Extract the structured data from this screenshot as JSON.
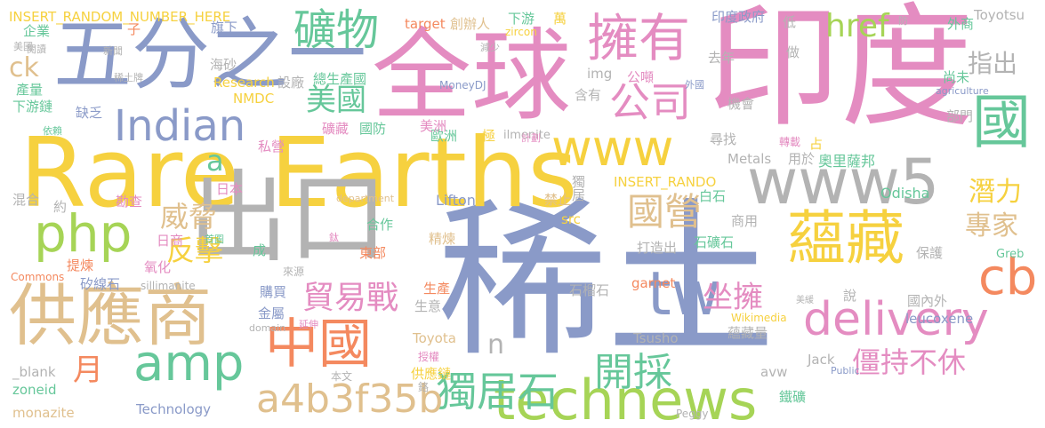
{
  "cloud": {
    "palette": {
      "gold": "#f6d13f",
      "slate": "#8a9ac8",
      "pink": "#e48cc1",
      "green": "#66c79a",
      "gray": "#b3b3b3",
      "sand": "#e0c08e",
      "orange": "#f4895f",
      "lime": "#a6d456"
    },
    "words": [
      {
        "text": "稀土",
        "color": "slate"
      },
      {
        "text": "印度",
        "color": "pink"
      },
      {
        "text": "Rare Earths",
        "color": "gold"
      },
      {
        "text": "全球",
        "color": "pink"
      },
      {
        "text": "出口",
        "color": "gray"
      },
      {
        "text": "五分之一",
        "color": "slate"
      },
      {
        "text": "供應商",
        "color": "sand"
      },
      {
        "text": "technews",
        "color": "lime"
      },
      {
        "text": "www5",
        "color": "gray"
      },
      {
        "text": "www",
        "color": "gold"
      },
      {
        "text": "擁有",
        "color": "pink"
      },
      {
        "text": "蘊藏",
        "color": "gold"
      },
      {
        "text": "php",
        "color": "lime"
      },
      {
        "text": "中國",
        "color": "orange"
      },
      {
        "text": "delivery",
        "color": "pink"
      },
      {
        "text": "cb",
        "color": "orange"
      },
      {
        "text": "tw",
        "color": "slate"
      },
      {
        "text": "amp",
        "color": "green"
      },
      {
        "text": "國",
        "color": "green"
      },
      {
        "text": "Indian",
        "color": "slate"
      },
      {
        "text": "礦物",
        "color": "green"
      },
      {
        "text": "公司",
        "color": "pink"
      },
      {
        "text": "國營",
        "color": "sand"
      },
      {
        "text": "獨居石",
        "color": "green"
      },
      {
        "text": "開採",
        "color": "green"
      },
      {
        "text": "a4b3f35b",
        "color": "sand"
      },
      {
        "text": "貿易戰",
        "color": "pink"
      },
      {
        "text": "美國",
        "color": "green"
      },
      {
        "text": "坐擁",
        "color": "pink"
      },
      {
        "text": "僵持不休",
        "color": "pink"
      },
      {
        "text": "威脅",
        "color": "sand"
      },
      {
        "text": "反擊",
        "color": "gold"
      },
      {
        "text": "月",
        "color": "orange"
      },
      {
        "text": "href",
        "color": "lime"
      },
      {
        "text": "指出",
        "color": "gray"
      },
      {
        "text": "潛力",
        "color": "gold"
      },
      {
        "text": "專家",
        "color": "sand"
      },
      {
        "text": "ck",
        "color": "sand"
      },
      {
        "text": "a",
        "color": "green"
      },
      {
        "text": "n",
        "color": "gray"
      },
      {
        "text": "INSERT_RANDOM_NUMBER_HERE",
        "color": "gold"
      },
      {
        "text": "Toyotsu",
        "color": "gray"
      },
      {
        "text": "INSERT_RANDO",
        "color": "gold"
      },
      {
        "text": "奧里薩邦",
        "color": "green"
      },
      {
        "text": "Odisha",
        "color": "green"
      },
      {
        "text": "Lifton",
        "color": "slate"
      },
      {
        "text": "Metals",
        "color": "gray"
      },
      {
        "text": "獨居",
        "color": "gray"
      },
      {
        "text": "Research",
        "color": "gold"
      },
      {
        "text": "NMDC",
        "color": "gold"
      },
      {
        "text": "MoneyDJ",
        "color": "slate"
      },
      {
        "text": "印度政府",
        "color": "slate"
      },
      {
        "text": "創辦人",
        "color": "sand"
      },
      {
        "text": "target",
        "color": "orange"
      },
      {
        "text": "下游",
        "color": "green"
      },
      {
        "text": "萬",
        "color": "gold"
      },
      {
        "text": "外商",
        "color": "green"
      },
      {
        "text": "低",
        "color": "gray"
      },
      {
        "text": "企業",
        "color": "green"
      },
      {
        "text": "子",
        "color": "orange"
      },
      {
        "text": "旗下",
        "color": "slate"
      },
      {
        "text": "海砂",
        "color": "gray"
      },
      {
        "text": "產量",
        "color": "green"
      },
      {
        "text": "下游鏈",
        "color": "green"
      },
      {
        "text": "缺乏",
        "color": "slate"
      },
      {
        "text": "設廠",
        "color": "gray"
      },
      {
        "text": "總生產國",
        "color": "green"
      },
      {
        "text": "礦藏",
        "color": "pink"
      },
      {
        "text": "國防",
        "color": "green"
      },
      {
        "text": "私營",
        "color": "pink"
      },
      {
        "text": "歐洲",
        "color": "green"
      },
      {
        "text": "美洲",
        "color": "pink"
      },
      {
        "text": "極",
        "color": "gold"
      },
      {
        "text": "公噸",
        "color": "pink"
      },
      {
        "text": "含有",
        "color": "gray"
      },
      {
        "text": "img",
        "color": "gray"
      },
      {
        "text": "去年",
        "color": "gray"
      },
      {
        "text": "做",
        "color": "gray"
      },
      {
        "text": "尚未",
        "color": "green"
      },
      {
        "text": "agriculture",
        "color": "slate"
      },
      {
        "text": "部門",
        "color": "gray"
      },
      {
        "text": "機會",
        "color": "gray"
      },
      {
        "text": "尋找",
        "color": "gray"
      },
      {
        "text": "轉載",
        "color": "pink"
      },
      {
        "text": "用於",
        "color": "gray"
      },
      {
        "text": "占",
        "color": "gold"
      },
      {
        "text": "禁止",
        "color": "sand"
      },
      {
        "text": "src",
        "color": "gold"
      },
      {
        "text": "白石",
        "color": "green"
      },
      {
        "text": "商用",
        "color": "gray"
      },
      {
        "text": "石礦石",
        "color": "green"
      },
      {
        "text": "保護",
        "color": "gray"
      },
      {
        "text": "Greb",
        "color": "green"
      },
      {
        "text": "混合",
        "color": "gray"
      },
      {
        "text": "約",
        "color": "gray"
      },
      {
        "text": "勘查",
        "color": "pink"
      },
      {
        "text": "日本",
        "color": "pink"
      },
      {
        "text": "日商",
        "color": "pink"
      },
      {
        "text": "氧化",
        "color": "pink"
      },
      {
        "text": "提煉",
        "color": "orange"
      },
      {
        "text": "矽線石",
        "color": "slate"
      },
      {
        "text": "sillimanite",
        "color": "gray"
      },
      {
        "text": "Commons",
        "color": "orange"
      },
      {
        "text": "合作",
        "color": "green"
      },
      {
        "text": "東部",
        "color": "orange"
      },
      {
        "text": "精煉",
        "color": "sand"
      },
      {
        "text": "打造出",
        "color": "gray"
      },
      {
        "text": "來源",
        "color": "gray"
      },
      {
        "text": "成",
        "color": "green"
      },
      {
        "text": "購買",
        "color": "slate"
      },
      {
        "text": "金屬",
        "color": "slate"
      },
      {
        "text": "生產",
        "color": "orange"
      },
      {
        "text": "生意",
        "color": "gray"
      },
      {
        "text": "石榴石",
        "color": "gray"
      },
      {
        "text": "garnet",
        "color": "orange"
      },
      {
        "text": "說",
        "color": "gray"
      },
      {
        "text": "國內外",
        "color": "gray"
      },
      {
        "text": "leucoxene",
        "color": "slate"
      },
      {
        "text": "Wikimedia",
        "color": "gold"
      },
      {
        "text": "蘊藏量",
        "color": "gray"
      },
      {
        "text": "Tsusho",
        "color": "gray"
      },
      {
        "text": "Toyota",
        "color": "sand"
      },
      {
        "text": "授權",
        "color": "pink"
      },
      {
        "text": "供應鏈",
        "color": "gold"
      },
      {
        "text": "_blank",
        "color": "gray"
      },
      {
        "text": "zoneid",
        "color": "green"
      },
      {
        "text": "monazite",
        "color": "sand"
      },
      {
        "text": "Technology",
        "color": "slate"
      },
      {
        "text": "本文",
        "color": "gray"
      },
      {
        "text": "Jack",
        "color": "gray"
      },
      {
        "text": "avw",
        "color": "gray"
      },
      {
        "text": "Public",
        "color": "slate"
      },
      {
        "text": "鐵礦",
        "color": "green"
      },
      {
        "text": "Peggy",
        "color": "gray"
      },
      {
        "text": "鉻",
        "color": "gray"
      },
      {
        "text": "ilmenite",
        "color": "gray"
      },
      {
        "text": "zircon",
        "color": "gold"
      },
      {
        "text": "減少",
        "color": "gray"
      },
      {
        "text": "計劃",
        "color": "pink"
      },
      {
        "text": "新聞",
        "color": "gray"
      },
      {
        "text": "稀土牌",
        "color": "gray"
      },
      {
        "text": "依賴",
        "color": "green"
      },
      {
        "text": "閱讀",
        "color": "gray"
      },
      {
        "text": "美國",
        "color": "gray"
      },
      {
        "text": "外國",
        "color": "slate"
      },
      {
        "text": "防",
        "color": "gray"
      },
      {
        "text": "首圖",
        "color": "green"
      },
      {
        "text": "鈦",
        "color": "pink"
      },
      {
        "text": "延伸",
        "color": "pink"
      },
      {
        "text": "domain",
        "color": "gray"
      },
      {
        "text": "department",
        "color": "sand"
      },
      {
        "text": "美緩",
        "color": "gray"
      }
    ]
  }
}
